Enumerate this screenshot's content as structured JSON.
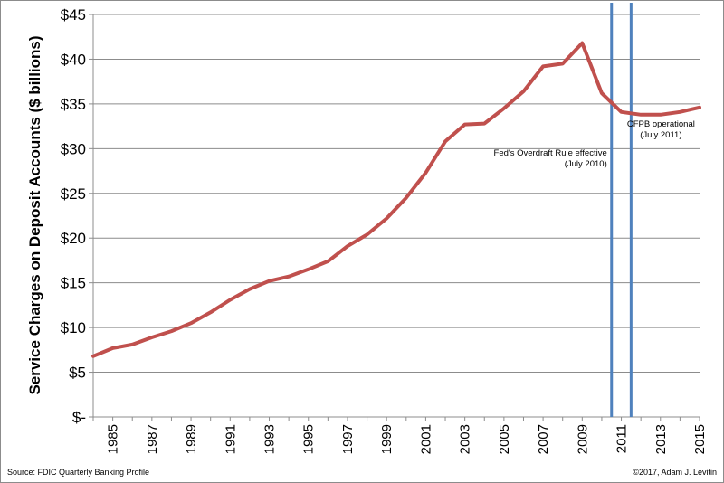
{
  "chart_data": {
    "type": "line",
    "title": "",
    "ylabel": "Service Charges on Deposit Accounts ($ billions)",
    "xlabel": "",
    "ylim": [
      0,
      45
    ],
    "xlim": [
      1984,
      2015
    ],
    "y_ticks": [
      {
        "value": 0,
        "label": "$-"
      },
      {
        "value": 5,
        "label": "$5"
      },
      {
        "value": 10,
        "label": "$10"
      },
      {
        "value": 15,
        "label": "$15"
      },
      {
        "value": 20,
        "label": "$20"
      },
      {
        "value": 25,
        "label": "$25"
      },
      {
        "value": 30,
        "label": "$30"
      },
      {
        "value": 35,
        "label": "$35"
      },
      {
        "value": 40,
        "label": "$40"
      },
      {
        "value": 45,
        "label": "$45"
      }
    ],
    "x_ticks": [
      1985,
      1987,
      1989,
      1991,
      1993,
      1995,
      1997,
      1999,
      2001,
      2003,
      2005,
      2007,
      2009,
      2011,
      2013,
      2015
    ],
    "grid": "horizontal",
    "series": [
      {
        "color": "#c0504d",
        "points": [
          [
            1984,
            6.8
          ],
          [
            1985,
            7.7
          ],
          [
            1986,
            8.1
          ],
          [
            1987,
            8.9
          ],
          [
            1988,
            9.6
          ],
          [
            1989,
            10.5
          ],
          [
            1990,
            11.7
          ],
          [
            1991,
            13.1
          ],
          [
            1992,
            14.3
          ],
          [
            1993,
            15.2
          ],
          [
            1994,
            15.7
          ],
          [
            1995,
            16.5
          ],
          [
            1996,
            17.4
          ],
          [
            1997,
            19.1
          ],
          [
            1998,
            20.4
          ],
          [
            1999,
            22.2
          ],
          [
            2000,
            24.5
          ],
          [
            2001,
            27.3
          ],
          [
            2002,
            30.8
          ],
          [
            2003,
            32.7
          ],
          [
            2004,
            32.8
          ],
          [
            2005,
            34.5
          ],
          [
            2006,
            36.4
          ],
          [
            2007,
            39.2
          ],
          [
            2008,
            39.5
          ],
          [
            2009,
            41.8
          ],
          [
            2010,
            36.2
          ],
          [
            2011,
            34.1
          ],
          [
            2012,
            33.8
          ],
          [
            2013,
            33.8
          ],
          [
            2014,
            34.1
          ],
          [
            2015,
            34.6
          ]
        ]
      }
    ],
    "reference_lines": [
      {
        "x": 2010.5,
        "color": "#4f81bd",
        "label_lines": [
          "Fed's Overdraft Rule effective",
          "(July 2010)"
        ]
      },
      {
        "x": 2011.5,
        "color": "#4f81bd",
        "label_lines": [
          "CFPB operational",
          "(July 2011)"
        ]
      }
    ]
  },
  "footer": {
    "source": "Source: FDIC Quarterly Banking Profile",
    "credit": "©2017, Adam J. Levitin"
  }
}
